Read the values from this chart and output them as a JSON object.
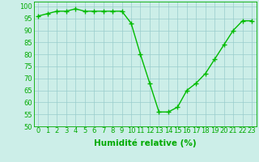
{
  "x": [
    0,
    1,
    2,
    3,
    4,
    5,
    6,
    7,
    8,
    9,
    10,
    11,
    12,
    13,
    14,
    15,
    16,
    17,
    18,
    19,
    20,
    21,
    22,
    23
  ],
  "y": [
    96,
    97,
    98,
    98,
    99,
    98,
    98,
    98,
    98,
    98,
    93,
    80,
    68,
    56,
    56,
    58,
    65,
    68,
    72,
    78,
    84,
    90,
    94,
    94
  ],
  "line_color": "#00bb00",
  "marker": "+",
  "marker_size": 4,
  "bg_color": "#cceee8",
  "grid_color": "#99cccc",
  "xlabel": "Humidité relative (%)",
  "xlabel_color": "#00aa00",
  "xlabel_fontsize": 7.5,
  "tick_color": "#00aa00",
  "tick_fontsize": 6,
  "ylim": [
    50,
    102
  ],
  "xlim": [
    -0.5,
    23.5
  ],
  "yticks": [
    50,
    55,
    60,
    65,
    70,
    75,
    80,
    85,
    90,
    95,
    100
  ],
  "xticks": [
    0,
    1,
    2,
    3,
    4,
    5,
    6,
    7,
    8,
    9,
    10,
    11,
    12,
    13,
    14,
    15,
    16,
    17,
    18,
    19,
    20,
    21,
    22,
    23
  ]
}
